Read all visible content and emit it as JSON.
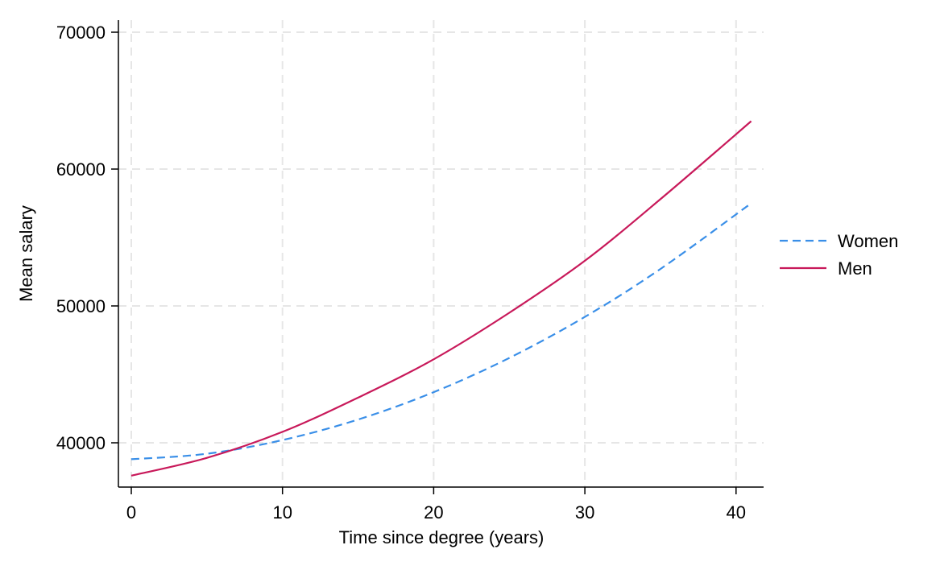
{
  "chart_data": {
    "type": "line",
    "xlabel": "Time since degree (years)",
    "ylabel": "Mean salary",
    "xlim": [
      0,
      41
    ],
    "ylim": [
      37000,
      70000
    ],
    "xticks": [
      0,
      10,
      20,
      30,
      40
    ],
    "xtick_labels": [
      "0",
      "10",
      "20",
      "30",
      "40"
    ],
    "yticks": [
      40000,
      50000,
      60000,
      70000
    ],
    "ytick_labels": [
      "40000",
      "50000",
      "60000",
      "70000"
    ],
    "grid": true,
    "legend_position": "right",
    "x": [
      0,
      5,
      10,
      15,
      20,
      25,
      30,
      35,
      41
    ],
    "series": [
      {
        "name": "Women",
        "style": "dashed",
        "color": "#3a8fe8",
        "values": [
          38800,
          39200,
          40200,
          41700,
          43700,
          46200,
          49200,
          52700,
          57500
        ]
      },
      {
        "name": "Men",
        "style": "solid",
        "color": "#c8195a",
        "values": [
          37600,
          38900,
          40800,
          43300,
          46100,
          49500,
          53300,
          57800,
          63500
        ]
      }
    ]
  }
}
